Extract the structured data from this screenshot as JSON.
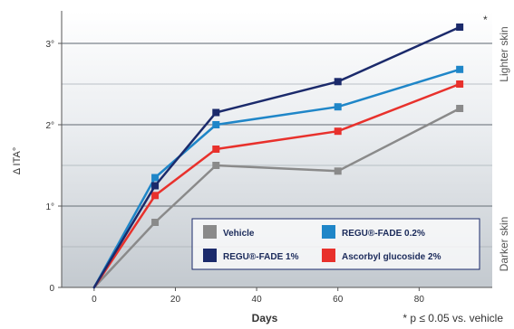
{
  "chart_data": {
    "type": "line",
    "xlabel": "Days",
    "ylabel": "Δ ITA°",
    "x_ticks": [
      "0",
      "20",
      "40",
      "60",
      "80"
    ],
    "y_ticks": [
      "0",
      "1°",
      "2°",
      "3°"
    ],
    "xlim": [
      -8,
      98
    ],
    "ylim": [
      0,
      3.4
    ],
    "grid": true,
    "legend_position": "bottom-right",
    "x": [
      0,
      15,
      30,
      60,
      90
    ],
    "series": [
      {
        "name": "Vehicle",
        "color": "#8a8a8a",
        "values": [
          0,
          0.8,
          1.5,
          1.43,
          2.2
        ]
      },
      {
        "name": "REGU®-FADE 1%",
        "color": "#1b2a6b",
        "values": [
          0,
          1.25,
          2.15,
          2.53,
          3.2
        ]
      },
      {
        "name": "REGU®-FADE 0.2%",
        "color": "#1f86c8",
        "values": [
          0,
          1.35,
          2.0,
          2.22,
          2.68
        ]
      },
      {
        "name": "Ascorbyl glucoside 2%",
        "color": "#e8312c",
        "values": [
          0,
          1.13,
          1.7,
          1.92,
          2.5
        ]
      }
    ],
    "side_labels": {
      "top": "Lighter skin",
      "bottom": "Darker skin"
    },
    "annotation": "*",
    "footnote": "* p ≤ 0.05 vs. vehicle"
  }
}
